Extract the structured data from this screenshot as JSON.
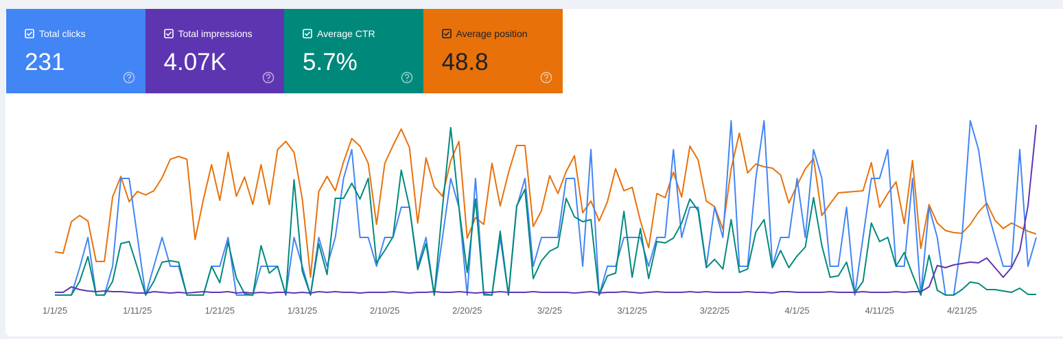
{
  "chart_data": {
    "type": "line",
    "categories": [
      "1/1/25",
      null,
      null,
      null,
      null,
      null,
      null,
      null,
      null,
      null,
      "1/11/25",
      null,
      null,
      null,
      null,
      null,
      null,
      null,
      null,
      null,
      "1/21/25",
      null,
      null,
      null,
      null,
      null,
      null,
      null,
      null,
      null,
      "1/31/25",
      null,
      null,
      null,
      null,
      null,
      null,
      null,
      null,
      null,
      "2/10/25",
      null,
      null,
      null,
      null,
      null,
      null,
      null,
      null,
      null,
      "2/20/25",
      null,
      null,
      null,
      null,
      null,
      null,
      null,
      null,
      null,
      "3/2/25",
      null,
      null,
      null,
      null,
      null,
      null,
      null,
      null,
      null,
      "3/12/25",
      null,
      null,
      null,
      null,
      null,
      null,
      null,
      null,
      null,
      "3/22/25",
      null,
      null,
      null,
      null,
      null,
      null,
      null,
      null,
      null,
      "4/1/25",
      null,
      null,
      null,
      null,
      null,
      null,
      null,
      null,
      null,
      "4/11/25",
      null,
      null,
      null,
      null,
      null,
      null,
      null,
      null,
      null,
      "4/21/25",
      null,
      null,
      null,
      null,
      null,
      null,
      null,
      null,
      null
    ],
    "ylim": [
      0,
      260
    ],
    "series": [
      {
        "name": "Total clicks",
        "total": "231",
        "color": "#4285f4",
        "values": [
          0,
          0,
          0,
          40,
          84,
          0,
          0,
          42,
          170,
          170,
          85,
          0,
          42,
          84,
          42,
          42,
          0,
          0,
          0,
          42,
          42,
          84,
          0,
          0,
          0,
          42,
          42,
          42,
          0,
          84,
          42,
          0,
          84,
          42,
          84,
          170,
          212,
          84,
          84,
          42,
          84,
          84,
          128,
          128,
          42,
          84,
          0,
          84,
          170,
          128,
          0,
          170,
          0,
          0,
          84,
          0,
          128,
          170,
          42,
          84,
          84,
          84,
          170,
          170,
          42,
          212,
          0,
          42,
          42,
          84,
          84,
          84,
          42,
          84,
          84,
          212,
          84,
          128,
          128,
          42,
          128,
          84,
          254,
          42,
          42,
          170,
          254,
          42,
          84,
          84,
          170,
          84,
          212,
          170,
          42,
          42,
          128,
          0,
          84,
          170,
          170,
          212,
          42,
          42,
          170,
          0,
          128,
          84,
          0,
          0,
          84,
          254,
          212,
          128,
          84,
          42,
          42,
          212,
          42,
          84
        ]
      },
      {
        "name": "Total impressions",
        "total": "4.07K",
        "color": "#5e35b1",
        "values": [
          4,
          4,
          12,
          8,
          6,
          5,
          6,
          5,
          5,
          4,
          3,
          3,
          5,
          4,
          3,
          4,
          3,
          4,
          5,
          4,
          4,
          5,
          3,
          4,
          3,
          4,
          3,
          4,
          4,
          3,
          4,
          3,
          5,
          4,
          5,
          4,
          4,
          3,
          4,
          4,
          4,
          5,
          4,
          3,
          4,
          4,
          5,
          4,
          4,
          5,
          4,
          3,
          4,
          4,
          5,
          4,
          4,
          4,
          5,
          4,
          4,
          4,
          4,
          3,
          4,
          5,
          3,
          4,
          4,
          5,
          4,
          3,
          4,
          5,
          4,
          4,
          4,
          5,
          4,
          5,
          4,
          4,
          4,
          4,
          5,
          4,
          4,
          3,
          5,
          5,
          4,
          4,
          4,
          4,
          5,
          4,
          4,
          4,
          5,
          4,
          4,
          4,
          5,
          4,
          5,
          5,
          12,
          43,
          40,
          44,
          46,
          48,
          47,
          54,
          40,
          26,
          40,
          65,
          130,
          248
        ]
      },
      {
        "name": "Average CTR",
        "total": "5.7%",
        "color": "#00897b",
        "values": [
          0,
          0,
          0,
          20,
          56,
          0,
          0,
          20,
          75,
          78,
          40,
          0,
          20,
          48,
          50,
          48,
          0,
          0,
          0,
          42,
          18,
          77,
          25,
          2,
          0,
          72,
          32,
          42,
          0,
          168,
          35,
          0,
          75,
          30,
          141,
          141,
          163,
          140,
          170,
          47,
          65,
          85,
          182,
          128,
          37,
          75,
          0,
          128,
          244,
          128,
          33,
          140,
          2,
          0,
          93,
          0,
          130,
          154,
          24,
          50,
          64,
          70,
          141,
          114,
          107,
          110,
          0,
          28,
          32,
          122,
          26,
          97,
          24,
          78,
          76,
          83,
          105,
          140,
          123,
          40,
          52,
          38,
          110,
          33,
          38,
          92,
          110,
          40,
          65,
          40,
          57,
          70,
          142,
          72,
          26,
          28,
          48,
          3,
          20,
          105,
          78,
          84,
          42,
          62,
          30,
          0,
          58,
          7,
          0,
          0,
          8,
          19,
          17,
          8,
          8,
          6,
          4,
          10,
          1,
          1
        ]
      },
      {
        "name": "Average position",
        "total": "48.8",
        "color": "#e8710a",
        "values": [
          63,
          61,
          107,
          116,
          108,
          49,
          49,
          143,
          173,
          136,
          151,
          146,
          152,
          171,
          198,
          202,
          198,
          81,
          139,
          190,
          138,
          208,
          144,
          172,
          132,
          190,
          132,
          212,
          224,
          208,
          140,
          26,
          151,
          173,
          152,
          194,
          228,
          217,
          192,
          103,
          192,
          218,
          242,
          215,
          105,
          200,
          158,
          144,
          196,
          224,
          83,
          113,
          103,
          192,
          130,
          178,
          218,
          218,
          100,
          123,
          174,
          148,
          180,
          203,
          120,
          137,
          108,
          136,
          184,
          152,
          157,
          108,
          69,
          148,
          142,
          179,
          143,
          217,
          197,
          137,
          129,
          96,
          184,
          236,
          178,
          191,
          187,
          185,
          175,
          134,
          160,
          184,
          199,
          116,
          133,
          149,
          150,
          151,
          152,
          193,
          128,
          148,
          165,
          104,
          196,
          68,
          132,
          105,
          94,
          91,
          90,
          103,
          121,
          134,
          109,
          97,
          105,
          99,
          93,
          89
        ]
      }
    ]
  }
}
